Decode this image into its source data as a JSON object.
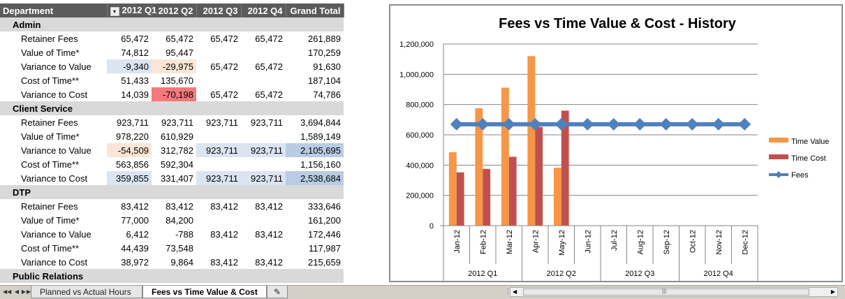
{
  "pivot": {
    "headers": [
      "Department",
      "2012 Q1",
      "2012 Q2",
      "2012 Q3",
      "2012 Q4",
      "Grand Total"
    ],
    "filter_icon": "dropdown-filter-icon",
    "groups": [
      {
        "name": "Admin",
        "rows": [
          {
            "label": "Retainer Fees",
            "values": [
              "65,472",
              "65,472",
              "65,472",
              "65,472",
              "261,889"
            ]
          },
          {
            "label": "Value of Time*",
            "values": [
              "74,812",
              "95,447",
              "",
              "",
              "170,259"
            ]
          },
          {
            "label": "Variance to Value",
            "values": [
              "-9,340",
              "-29,975",
              "65,472",
              "65,472",
              "91,630"
            ]
          },
          {
            "label": "Cost of Time**",
            "values": [
              "51,433",
              "135,670",
              "",
              "",
              "187,104"
            ]
          },
          {
            "label": "Variance to Cost",
            "values": [
              "14,039",
              "-70,198",
              "65,472",
              "65,472",
              "74,786"
            ]
          }
        ]
      },
      {
        "name": "Client Service",
        "rows": [
          {
            "label": "Retainer Fees",
            "values": [
              "923,711",
              "923,711",
              "923,711",
              "923,711",
              "3,694,844"
            ]
          },
          {
            "label": "Value of Time*",
            "values": [
              "978,220",
              "610,929",
              "",
              "",
              "1,589,149"
            ]
          },
          {
            "label": "Variance to Value",
            "values": [
              "-54,509",
              "312,782",
              "923,711",
              "923,711",
              "2,105,695"
            ]
          },
          {
            "label": "Cost of Time**",
            "values": [
              "563,856",
              "592,304",
              "",
              "",
              "1,156,160"
            ]
          },
          {
            "label": "Variance to Cost",
            "values": [
              "359,855",
              "331,407",
              "923,711",
              "923,711",
              "2,538,684"
            ]
          }
        ]
      },
      {
        "name": "DTP",
        "rows": [
          {
            "label": "Retainer Fees",
            "values": [
              "83,412",
              "83,412",
              "83,412",
              "83,412",
              "333,646"
            ]
          },
          {
            "label": "Value of Time*",
            "values": [
              "77,000",
              "84,200",
              "",
              "",
              "161,200"
            ]
          },
          {
            "label": "Variance to Value",
            "values": [
              "6,412",
              "-788",
              "83,412",
              "83,412",
              "172,446"
            ]
          },
          {
            "label": "Cost of Time**",
            "values": [
              "44,439",
              "73,548",
              "",
              "",
              "117,987"
            ]
          },
          {
            "label": "Variance to Cost",
            "values": [
              "38,972",
              "9,864",
              "83,412",
              "83,412",
              "215,659"
            ]
          }
        ]
      },
      {
        "name": "Public Relations",
        "rows": []
      }
    ],
    "colors": {
      "peach": "#fbe5d6",
      "red": "#f4787a",
      "blue_light": "#dbe5f1",
      "blue_dark": "#b8cce4"
    }
  },
  "chart_data": {
    "type": "bar",
    "title": "Fees vs Time Value & Cost - History",
    "categories": [
      "Jan-12",
      "Feb-12",
      "Mar-12",
      "Apr-12",
      "May-12",
      "Jun-12",
      "Jul-12",
      "Aug-12",
      "Sep-12",
      "Oct-12",
      "Nov-12",
      "Dec-12"
    ],
    "groups": [
      "2012 Q1",
      "2012 Q2",
      "2012 Q3",
      "2012 Q4"
    ],
    "series": [
      {
        "name": "Time Value",
        "type": "bar",
        "color": "#f79646",
        "values": [
          485000,
          775000,
          912000,
          1120000,
          382000,
          null,
          null,
          null,
          null,
          null,
          null,
          null
        ]
      },
      {
        "name": "Time Cost",
        "type": "bar",
        "color": "#c0504d",
        "values": [
          352000,
          375000,
          455000,
          652000,
          760000,
          null,
          null,
          null,
          null,
          null,
          null,
          null
        ]
      },
      {
        "name": "Fees",
        "type": "line",
        "color": "#4f81bd",
        "values": [
          670000,
          670000,
          670000,
          670000,
          670000,
          670000,
          670000,
          670000,
          670000,
          670000,
          670000,
          670000
        ]
      }
    ],
    "y_ticks": [
      "0",
      "200,000",
      "400,000",
      "600,000",
      "800,000",
      "1,000,000",
      "1,200,000"
    ],
    "ylim": [
      0,
      1200000
    ],
    "grid": true,
    "legend": "right"
  },
  "tabs": {
    "items": [
      "Planned vs Actual Hours",
      "Fees vs Time Value & Cost"
    ],
    "active": 1,
    "new_sheet_icon": "insert-sheet-icon",
    "nav_icons": [
      "first-sheet-icon",
      "prev-sheet-icon",
      "next-sheet-icon",
      "last-sheet-icon"
    ]
  }
}
